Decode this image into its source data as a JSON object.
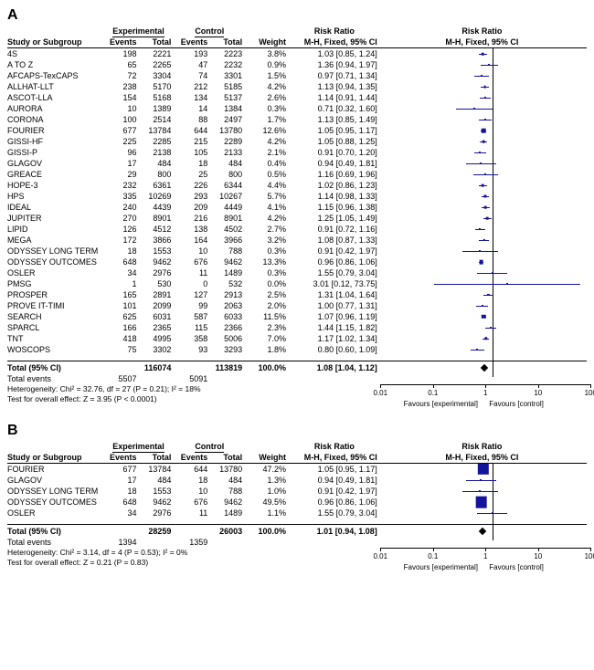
{
  "colors": {
    "marker": "#14149a",
    "text": "#000000",
    "bg": "#ffffff"
  },
  "axis": {
    "min_log": -2,
    "max_log": 2,
    "ticks": [
      {
        "v": 0.01,
        "label": "0.01"
      },
      {
        "v": 0.1,
        "label": "0.1"
      },
      {
        "v": 1,
        "label": "1"
      },
      {
        "v": 10,
        "label": "10"
      },
      {
        "v": 100,
        "label": "100"
      }
    ],
    "fav_left": "Favours [experimental]",
    "fav_right": "Favours [control]"
  },
  "headers": {
    "study": "Study or Subgroup",
    "exp": "Experimental",
    "ctrl": "Control",
    "events": "Events",
    "total": "Total",
    "weight": "Weight",
    "rr": "Risk Ratio",
    "rr_sub": "M-H, Fixed, 95% CI"
  },
  "panelA": {
    "label": "A",
    "rows": [
      {
        "study": "4S",
        "ee": 198,
        "et": 2221,
        "ce": 193,
        "ct": 2223,
        "w": "3.8%",
        "rr": "1.03 [0.85, 1.24]",
        "p": 1.03,
        "lo": 0.85,
        "hi": 1.24
      },
      {
        "study": "A TO Z",
        "ee": 65,
        "et": 2265,
        "ce": 47,
        "ct": 2232,
        "w": "0.9%",
        "rr": "1.36 [0.94, 1.97]",
        "p": 1.36,
        "lo": 0.94,
        "hi": 1.97
      },
      {
        "study": "AFCAPS-TexCAPS",
        "ee": 72,
        "et": 3304,
        "ce": 74,
        "ct": 3301,
        "w": "1.5%",
        "rr": "0.97 [0.71, 1.34]",
        "p": 0.97,
        "lo": 0.71,
        "hi": 1.34
      },
      {
        "study": "ALLHAT-LLT",
        "ee": 238,
        "et": 5170,
        "ce": 212,
        "ct": 5185,
        "w": "4.2%",
        "rr": "1.13 [0.94, 1.35]",
        "p": 1.13,
        "lo": 0.94,
        "hi": 1.35
      },
      {
        "study": "ASCOT-LLA",
        "ee": 154,
        "et": 5168,
        "ce": 134,
        "ct": 5137,
        "w": "2.6%",
        "rr": "1.14 [0.91, 1.44]",
        "p": 1.14,
        "lo": 0.91,
        "hi": 1.44
      },
      {
        "study": "AURORA",
        "ee": 10,
        "et": 1389,
        "ce": 14,
        "ct": 1384,
        "w": "0.3%",
        "rr": "0.71 [0.32, 1.60]",
        "p": 0.71,
        "lo": 0.32,
        "hi": 1.6
      },
      {
        "study": "CORONA",
        "ee": 100,
        "et": 2514,
        "ce": 88,
        "ct": 2497,
        "w": "1.7%",
        "rr": "1.13 [0.85, 1.49]",
        "p": 1.13,
        "lo": 0.85,
        "hi": 1.49
      },
      {
        "study": "FOURIER",
        "ee": 677,
        "et": 13784,
        "ce": 644,
        "ct": 13780,
        "w": "12.6%",
        "rr": "1.05 [0.95, 1.17]",
        "p": 1.05,
        "lo": 0.95,
        "hi": 1.17
      },
      {
        "study": "GISSI-HF",
        "ee": 225,
        "et": 2285,
        "ce": 215,
        "ct": 2289,
        "w": "4.2%",
        "rr": "1.05 [0.88, 1.25]",
        "p": 1.05,
        "lo": 0.88,
        "hi": 1.25
      },
      {
        "study": "GISSI-P",
        "ee": 96,
        "et": 2138,
        "ce": 105,
        "ct": 2133,
        "w": "2.1%",
        "rr": "0.91 [0.70, 1.20]",
        "p": 0.91,
        "lo": 0.7,
        "hi": 1.2
      },
      {
        "study": "GLAGOV",
        "ee": 17,
        "et": 484,
        "ce": 18,
        "ct": 484,
        "w": "0.4%",
        "rr": "0.94 [0.49, 1.81]",
        "p": 0.94,
        "lo": 0.49,
        "hi": 1.81
      },
      {
        "study": "GREACE",
        "ee": 29,
        "et": 800,
        "ce": 25,
        "ct": 800,
        "w": "0.5%",
        "rr": "1.16 [0.69, 1.96]",
        "p": 1.16,
        "lo": 0.69,
        "hi": 1.96
      },
      {
        "study": "HOPE-3",
        "ee": 232,
        "et": 6361,
        "ce": 226,
        "ct": 6344,
        "w": "4.4%",
        "rr": "1.02 [0.86, 1.23]",
        "p": 1.02,
        "lo": 0.86,
        "hi": 1.23
      },
      {
        "study": "HPS",
        "ee": 335,
        "et": 10269,
        "ce": 293,
        "ct": 10267,
        "w": "5.7%",
        "rr": "1.14 [0.98, 1.33]",
        "p": 1.14,
        "lo": 0.98,
        "hi": 1.33
      },
      {
        "study": "IDEAL",
        "ee": 240,
        "et": 4439,
        "ce": 209,
        "ct": 4449,
        "w": "4.1%",
        "rr": "1.15 [0.96, 1.38]",
        "p": 1.15,
        "lo": 0.96,
        "hi": 1.38
      },
      {
        "study": "JUPITER",
        "ee": 270,
        "et": 8901,
        "ce": 216,
        "ct": 8901,
        "w": "4.2%",
        "rr": "1.25 [1.05, 1.49]",
        "p": 1.25,
        "lo": 1.05,
        "hi": 1.49
      },
      {
        "study": "LIPID",
        "ee": 126,
        "et": 4512,
        "ce": 138,
        "ct": 4502,
        "w": "2.7%",
        "rr": "0.91 [0.72, 1.16]",
        "p": 0.91,
        "lo": 0.72,
        "hi": 1.16
      },
      {
        "study": "MEGA",
        "ee": 172,
        "et": 3866,
        "ce": 164,
        "ct": 3966,
        "w": "3.2%",
        "rr": "1.08 [0.87, 1.33]",
        "p": 1.08,
        "lo": 0.87,
        "hi": 1.33
      },
      {
        "study": "ODYSSEY LONG TERM",
        "ee": 18,
        "et": 1553,
        "ce": 10,
        "ct": 788,
        "w": "0.3%",
        "rr": "0.91 [0.42, 1.97]",
        "p": 0.91,
        "lo": 0.42,
        "hi": 1.97
      },
      {
        "study": "ODYSSEY OUTCOMES",
        "ee": 648,
        "et": 9462,
        "ce": 676,
        "ct": 9462,
        "w": "13.3%",
        "rr": "0.96 [0.86, 1.06]",
        "p": 0.96,
        "lo": 0.86,
        "hi": 1.06
      },
      {
        "study": "OSLER",
        "ee": 34,
        "et": 2976,
        "ce": 11,
        "ct": 1489,
        "w": "0.3%",
        "rr": "1.55 [0.79, 3.04]",
        "p": 1.55,
        "lo": 0.79,
        "hi": 3.04
      },
      {
        "study": "PMSG",
        "ee": 1,
        "et": 530,
        "ce": 0,
        "ct": 532,
        "w": "0.0%",
        "rr": "3.01 [0.12, 73.75]",
        "p": 3.01,
        "lo": 0.12,
        "hi": 73.75
      },
      {
        "study": "PROSPER",
        "ee": 165,
        "et": 2891,
        "ce": 127,
        "ct": 2913,
        "w": "2.5%",
        "rr": "1.31 [1.04, 1.64]",
        "p": 1.31,
        "lo": 1.04,
        "hi": 1.64
      },
      {
        "study": "PROVE IT-TIMI",
        "ee": 101,
        "et": 2099,
        "ce": 99,
        "ct": 2063,
        "w": "2.0%",
        "rr": "1.00 [0.77, 1.31]",
        "p": 1.0,
        "lo": 0.77,
        "hi": 1.31
      },
      {
        "study": "SEARCH",
        "ee": 625,
        "et": 6031,
        "ce": 587,
        "ct": 6033,
        "w": "11.5%",
        "rr": "1.07 [0.96, 1.19]",
        "p": 1.07,
        "lo": 0.96,
        "hi": 1.19
      },
      {
        "study": "SPARCL",
        "ee": 166,
        "et": 2365,
        "ce": 115,
        "ct": 2366,
        "w": "2.3%",
        "rr": "1.44 [1.15, 1.82]",
        "p": 1.44,
        "lo": 1.15,
        "hi": 1.82
      },
      {
        "study": "TNT",
        "ee": 418,
        "et": 4995,
        "ce": 358,
        "ct": 5006,
        "w": "7.0%",
        "rr": "1.17 [1.02, 1.34]",
        "p": 1.17,
        "lo": 1.02,
        "hi": 1.34
      },
      {
        "study": "WOSCOPS",
        "ee": 75,
        "et": 3302,
        "ce": 93,
        "ct": 3293,
        "w": "1.8%",
        "rr": "0.80 [0.60, 1.09]",
        "p": 0.8,
        "lo": 0.6,
        "hi": 1.09
      }
    ],
    "total": {
      "label": "Total (95% CI)",
      "et": 116074,
      "ct": 113819,
      "w": "100.0%",
      "rr": "1.08 [1.04, 1.12]",
      "p": 1.08,
      "lo": 1.04,
      "hi": 1.12
    },
    "total_events": {
      "label": "Total events",
      "ee": 5507,
      "ce": 5091
    },
    "het": "Heterogeneity: Chi² = 32.76, df = 27 (P = 0.21); I² = 18%",
    "eff": "Test for overall effect: Z = 3.95 (P < 0.0001)"
  },
  "panelB": {
    "label": "B",
    "rows": [
      {
        "study": "FOURIER",
        "ee": 677,
        "et": 13784,
        "ce": 644,
        "ct": 13780,
        "w": "47.2%",
        "rr": "1.05 [0.95, 1.17]",
        "p": 1.05,
        "lo": 0.95,
        "hi": 1.17
      },
      {
        "study": "GLAGOV",
        "ee": 17,
        "et": 484,
        "ce": 18,
        "ct": 484,
        "w": "1.3%",
        "rr": "0.94 [0.49, 1.81]",
        "p": 0.94,
        "lo": 0.49,
        "hi": 1.81
      },
      {
        "study": "ODYSSEY LONG TERM",
        "ee": 18,
        "et": 1553,
        "ce": 10,
        "ct": 788,
        "w": "1.0%",
        "rr": "0.91 [0.42, 1.97]",
        "p": 0.91,
        "lo": 0.42,
        "hi": 1.97
      },
      {
        "study": "ODYSSEY OUTCOMES",
        "ee": 648,
        "et": 9462,
        "ce": 676,
        "ct": 9462,
        "w": "49.5%",
        "rr": "0.96 [0.86, 1.06]",
        "p": 0.96,
        "lo": 0.86,
        "hi": 1.06
      },
      {
        "study": "OSLER",
        "ee": 34,
        "et": 2976,
        "ce": 11,
        "ct": 1489,
        "w": "1.1%",
        "rr": "1.55 [0.79, 3.04]",
        "p": 1.55,
        "lo": 0.79,
        "hi": 3.04
      }
    ],
    "total": {
      "label": "Total (95% CI)",
      "et": 28259,
      "ct": 26003,
      "w": "100.0%",
      "rr": "1.01 [0.94, 1.08]",
      "p": 1.01,
      "lo": 0.94,
      "hi": 1.08
    },
    "total_events": {
      "label": "Total events",
      "ee": 1394,
      "ce": 1359
    },
    "het": "Heterogeneity: Chi² = 3.14, df = 4 (P = 0.53); I² = 0%",
    "eff": "Test for overall effect: Z = 0.21 (P = 0.83)"
  }
}
